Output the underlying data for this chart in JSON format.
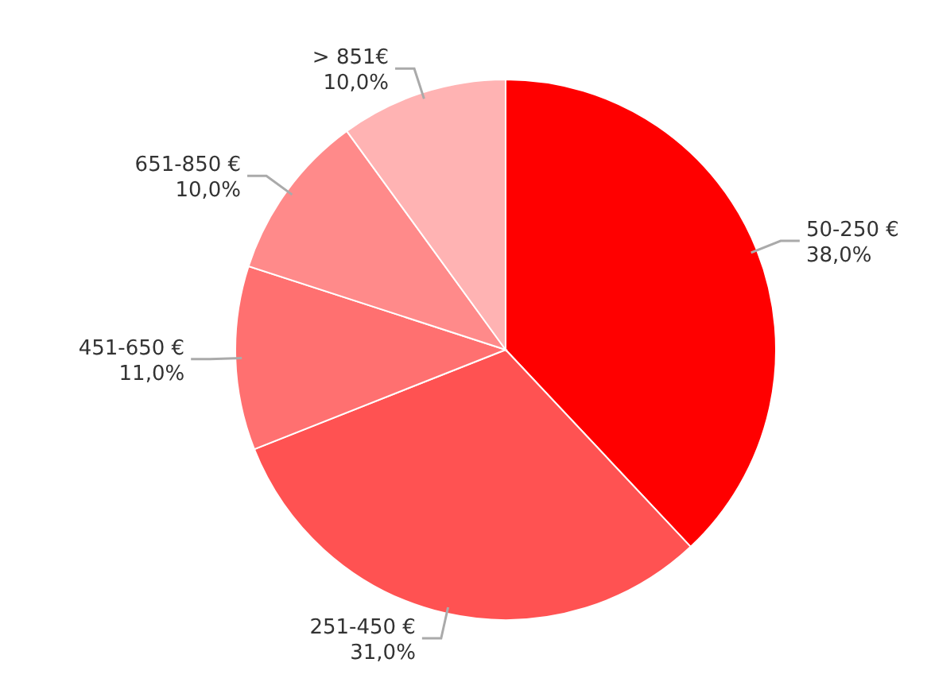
{
  "chart_data": {
    "type": "pie",
    "categories": [
      "50-250 €",
      "251-450 €",
      "451-650 €",
      "651-850 €",
      "> 851€"
    ],
    "values": [
      38,
      31,
      11,
      10,
      10
    ],
    "value_labels": [
      "38,0%",
      "31,0%",
      "11,0%",
      "10,0%",
      "10,0%"
    ],
    "colors": [
      "#ff0000",
      "#ff5252",
      "#ff7070",
      "#ff8a8a",
      "#ffb3b3"
    ]
  }
}
